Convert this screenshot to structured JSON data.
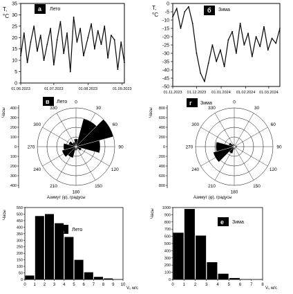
{
  "panels": {
    "a": {
      "letter": "а",
      "caption": "Лето",
      "ylabel": [
        "T,",
        "°C"
      ],
      "ylim": [
        0,
        35
      ],
      "yticks": [
        "35",
        "30",
        "25",
        "20",
        "15",
        "10",
        "5",
        "0"
      ],
      "xticks": [
        "01.06.2023",
        "01.07.2023",
        "01.08.2023",
        "01.09.2023"
      ]
    },
    "b": {
      "letter": "б",
      "caption": "Зима",
      "ylabel": [
        "T,",
        "°C"
      ],
      "ylim": [
        -50,
        0
      ],
      "yticks": [
        "0",
        "-5",
        "-10",
        "-15",
        "-20",
        "-25",
        "-30",
        "-35",
        "-40",
        "-45",
        "-50"
      ],
      "xticks": [
        "01.11.2023",
        "01.12.2023",
        "01.01.2024",
        "01.02.2024",
        "01.03.2024"
      ]
    },
    "v": {
      "letter": "в",
      "caption": "Лето",
      "ylabel": "Часы",
      "xlabel": "Азимут (φ), градусы",
      "radial_ticks": [
        "400",
        "300",
        "200",
        "100",
        "0",
        "100",
        "200",
        "300",
        "400"
      ],
      "angles": [
        "0",
        "30",
        "60",
        "90",
        "120",
        "150",
        "180",
        "210",
        "240",
        "270",
        "300",
        "330"
      ]
    },
    "g": {
      "letter": "г",
      "caption": "Зима",
      "ylabel": "Часы",
      "xlabel": "Азимут (φ), градусы",
      "radial_ticks": [
        "800",
        "600",
        "400",
        "200",
        "0",
        "200",
        "400",
        "600",
        "800"
      ],
      "angles": [
        "0",
        "30",
        "60",
        "90",
        "120",
        "150",
        "180",
        "210",
        "240",
        "270",
        "300",
        "330"
      ]
    },
    "d": {
      "letter": "д",
      "caption": "Лето",
      "ylabel": "Часы",
      "xlabel": "V₀ м/с",
      "yticks": [
        "0",
        "50",
        "100",
        "150",
        "200",
        "250",
        "300",
        "350",
        "400",
        "450",
        "500",
        "550"
      ],
      "xticks": [
        "0",
        "1",
        "2",
        "3",
        "4",
        "5",
        "6",
        "7",
        "8",
        "9",
        "10"
      ]
    },
    "e": {
      "letter": "е",
      "caption": "Зима",
      "ylabel": "Часы",
      "xlabel": "V₀ м/с",
      "yticks": [
        "0",
        "100",
        "200",
        "300",
        "400",
        "500",
        "600",
        "700",
        "800",
        "900",
        "1000"
      ],
      "xticks": [
        "0",
        "1",
        "2",
        "3",
        "4",
        "5",
        "6",
        "7",
        "8"
      ]
    }
  },
  "chart_data": [
    {
      "type": "line",
      "panel": "а",
      "x": [
        "01.06.2023",
        "04.06.2023",
        "07.06.2023",
        "10.06.2023",
        "13.06.2023",
        "16.06.2023",
        "19.06.2023",
        "22.06.2023",
        "25.06.2023",
        "28.06.2023",
        "01.07.2023",
        "04.07.2023",
        "07.07.2023",
        "10.07.2023",
        "13.07.2023",
        "16.07.2023",
        "19.07.2023",
        "22.07.2023",
        "25.07.2023",
        "28.07.2023",
        "01.08.2023",
        "04.08.2023",
        "07.08.2023",
        "10.08.2023",
        "13.08.2023",
        "16.08.2023",
        "19.08.2023",
        "22.08.2023",
        "25.08.2023",
        "28.08.2023",
        "31.08.2023",
        "03.09.2023"
      ],
      "values": [
        12,
        22,
        9,
        18,
        25,
        14,
        21,
        10,
        17,
        24,
        8,
        19,
        27,
        13,
        22,
        5,
        29,
        18,
        24,
        12,
        20,
        26,
        15,
        23,
        17,
        25,
        11,
        21,
        19,
        6,
        18,
        9
      ],
      "ylim": [
        0,
        35
      ]
    },
    {
      "type": "line",
      "panel": "б",
      "x": [
        "01.11.2023",
        "06.11.2023",
        "11.11.2023",
        "16.11.2023",
        "21.11.2023",
        "26.11.2023",
        "01.12.2023",
        "06.12.2023",
        "11.12.2023",
        "16.12.2023",
        "21.12.2023",
        "26.12.2023",
        "31.12.2023",
        "05.01.2024",
        "10.01.2024",
        "15.01.2024",
        "20.01.2024",
        "25.01.2024",
        "30.01.2024",
        "04.02.2024",
        "09.02.2024",
        "14.02.2024",
        "19.02.2024",
        "24.02.2024",
        "29.02.2024",
        "05.03.2024",
        "10.03.2024",
        "15.03.2024"
      ],
      "values": [
        -8,
        -3,
        -15,
        -5,
        -2,
        -12,
        -30,
        -42,
        -47,
        -36,
        -25,
        -35,
        -28,
        -38,
        -22,
        -17,
        -30,
        -12,
        -25,
        -18,
        -32,
        -20,
        -26,
        -14,
        -28,
        -21,
        -24,
        -15
      ],
      "ylim": [
        -50,
        0
      ]
    },
    {
      "type": "polar-bar",
      "panel": "в",
      "angles": [
        0,
        30,
        60,
        90,
        120,
        150,
        180,
        210,
        240,
        270,
        300,
        330
      ],
      "values": [
        80,
        300,
        400,
        250,
        60,
        30,
        40,
        120,
        150,
        130,
        80,
        50
      ],
      "rmax": 400
    },
    {
      "type": "polar-bar",
      "panel": "г",
      "angles": [
        0,
        30,
        60,
        90,
        120,
        150,
        180,
        210,
        240,
        270,
        300,
        330
      ],
      "values": [
        50,
        30,
        40,
        60,
        40,
        30,
        60,
        150,
        450,
        380,
        120,
        60
      ],
      "rmax": 800
    },
    {
      "type": "bar",
      "panel": "д",
      "categories": [
        "0",
        "1",
        "2",
        "3",
        "4",
        "5",
        "6",
        "7",
        "8",
        "9"
      ],
      "values": [
        30,
        485,
        500,
        430,
        325,
        150,
        55,
        20,
        8,
        2
      ],
      "ylim": [
        0,
        550
      ]
    },
    {
      "type": "bar",
      "panel": "е",
      "categories": [
        "0",
        "1",
        "2",
        "3",
        "4",
        "5",
        "6",
        "7"
      ],
      "values": [
        650,
        980,
        610,
        240,
        80,
        20,
        5,
        2
      ],
      "ylim": [
        0,
        1000
      ]
    }
  ]
}
